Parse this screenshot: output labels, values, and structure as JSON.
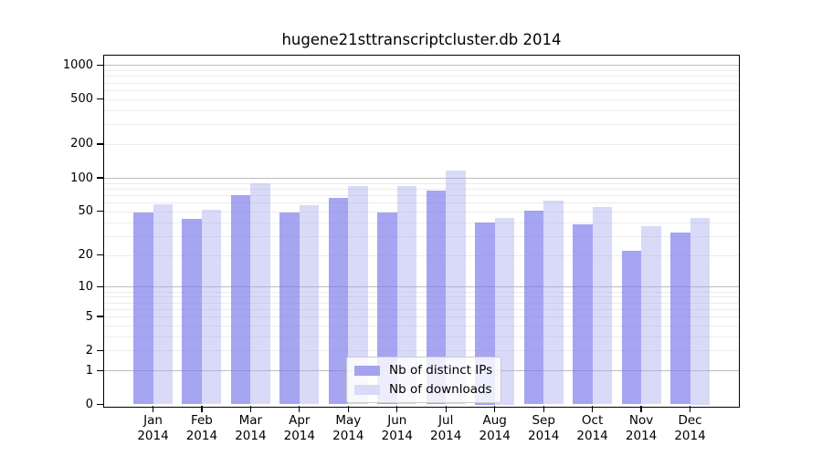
{
  "chart_data": {
    "type": "bar",
    "title": "hugene21sttranscriptcluster.db 2014",
    "categories": [
      "Jan",
      "Feb",
      "Mar",
      "Apr",
      "May",
      "Jun",
      "Jul",
      "Aug",
      "Sep",
      "Oct",
      "Nov",
      "Dec"
    ],
    "category_year": "2014",
    "series": [
      {
        "name": "Nb of distinct IPs",
        "color": "#a3a3f0",
        "fill": "rgba(122,122,235,0.68)",
        "values": [
          49,
          43,
          70,
          49,
          66,
          49,
          77,
          40,
          51,
          38,
          22,
          32
        ]
      },
      {
        "name": "Nb of downloads",
        "color": "#d9d9f8",
        "fill": "rgba(170,170,240,0.45)",
        "values": [
          58,
          52,
          89,
          57,
          84,
          84,
          117,
          44,
          62,
          55,
          37,
          44
        ]
      }
    ],
    "xlabel": "",
    "ylabel": "",
    "yscale": "log10(1+y)",
    "ylim": [
      0,
      1250
    ],
    "y_ticks": [
      0,
      1,
      2,
      5,
      10,
      20,
      50,
      100,
      200,
      500,
      1000
    ],
    "grid": {
      "major_values": [
        1,
        10,
        100,
        1000
      ],
      "minor_values": [
        2,
        3,
        4,
        5,
        6,
        7,
        8,
        9,
        20,
        30,
        40,
        50,
        60,
        70,
        80,
        90,
        200,
        300,
        400,
        500,
        600,
        700,
        800,
        900
      ],
      "major_color": "#bcbcbc",
      "minor_color": "#ececec"
    },
    "legend": {
      "position": "lower center",
      "entries": [
        "Nb of distinct IPs",
        "Nb of downloads"
      ]
    },
    "colors": {
      "axis": "#000000",
      "background": "#ffffff",
      "text": "#000000"
    }
  }
}
